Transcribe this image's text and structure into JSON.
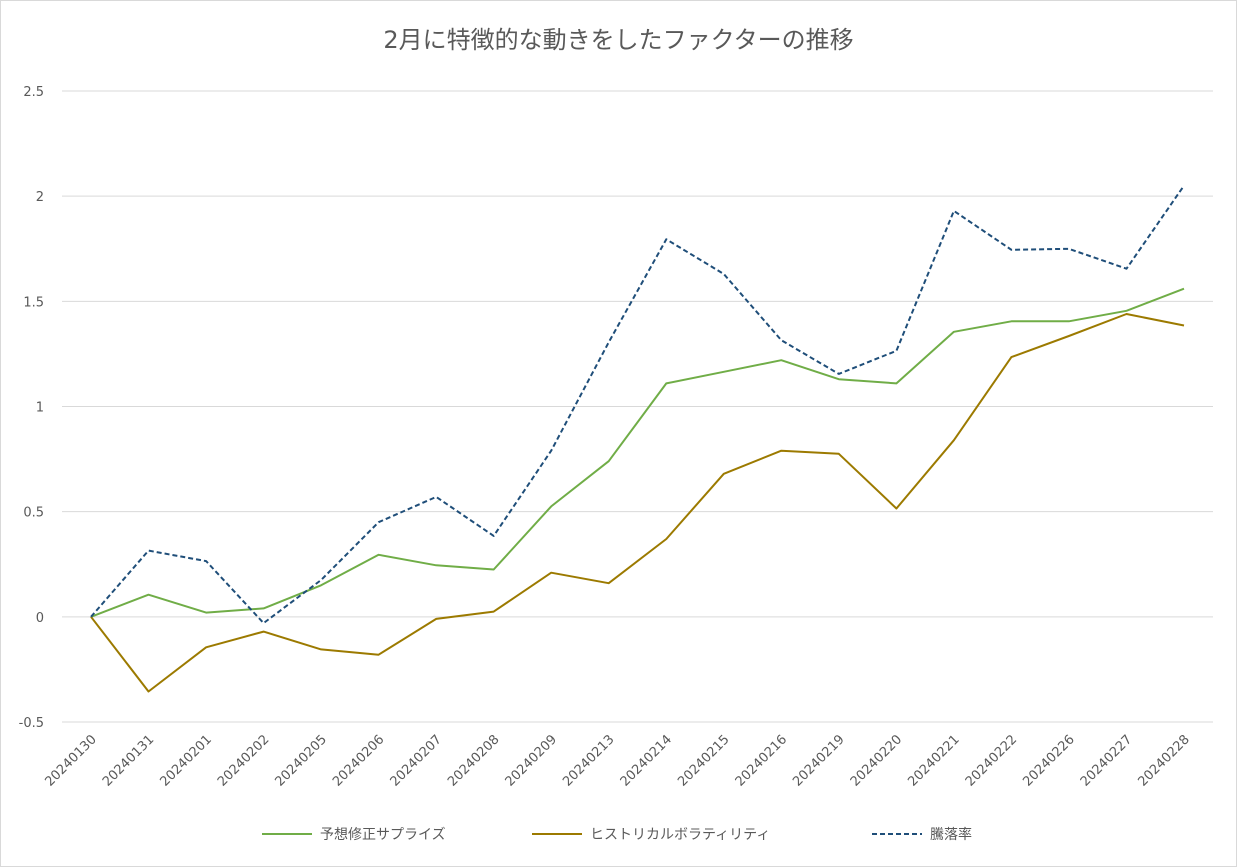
{
  "chart_data": {
    "type": "line",
    "title": "2月に特徴的な動きをしたファクターの推移",
    "xlabel": "",
    "ylabel": "",
    "ylim": [
      -0.5,
      2.5
    ],
    "yticks": [
      "-0.5",
      "0",
      "0.5",
      "1",
      "1.5",
      "2",
      "2.5"
    ],
    "grid": true,
    "legend_position": "bottom",
    "categories": [
      "20240130",
      "20240131",
      "20240201",
      "20240202",
      "20240205",
      "20240206",
      "20240207",
      "20240208",
      "20240209",
      "20240213",
      "20240214",
      "20240215",
      "20240216",
      "20240219",
      "20240220",
      "20240221",
      "20240222",
      "20240226",
      "20240227",
      "20240228"
    ],
    "series": [
      {
        "name": "予想修正サプライズ",
        "color": "#70ad47",
        "dash": "solid",
        "values": [
          0.0,
          0.105,
          0.02,
          0.04,
          0.15,
          0.295,
          0.245,
          0.225,
          0.525,
          0.74,
          1.11,
          1.165,
          1.22,
          1.13,
          1.11,
          1.355,
          1.405,
          1.405,
          1.455,
          1.56
        ]
      },
      {
        "name": "ヒストリカルボラティリティ",
        "color": "#9c7a00",
        "dash": "solid",
        "values": [
          0.0,
          -0.355,
          -0.145,
          -0.07,
          -0.155,
          -0.18,
          -0.01,
          0.025,
          0.21,
          0.16,
          0.37,
          0.68,
          0.79,
          0.775,
          0.515,
          0.84,
          1.235,
          1.335,
          1.44,
          1.385
        ]
      },
      {
        "name": "騰落率",
        "color": "#1f4e79",
        "dash": "dashed",
        "values": [
          0.0,
          0.315,
          0.265,
          -0.03,
          0.175,
          0.45,
          0.57,
          0.385,
          0.79,
          1.305,
          1.795,
          1.63,
          1.315,
          1.155,
          1.265,
          1.93,
          1.745,
          1.75,
          1.655,
          2.05
        ]
      }
    ]
  }
}
